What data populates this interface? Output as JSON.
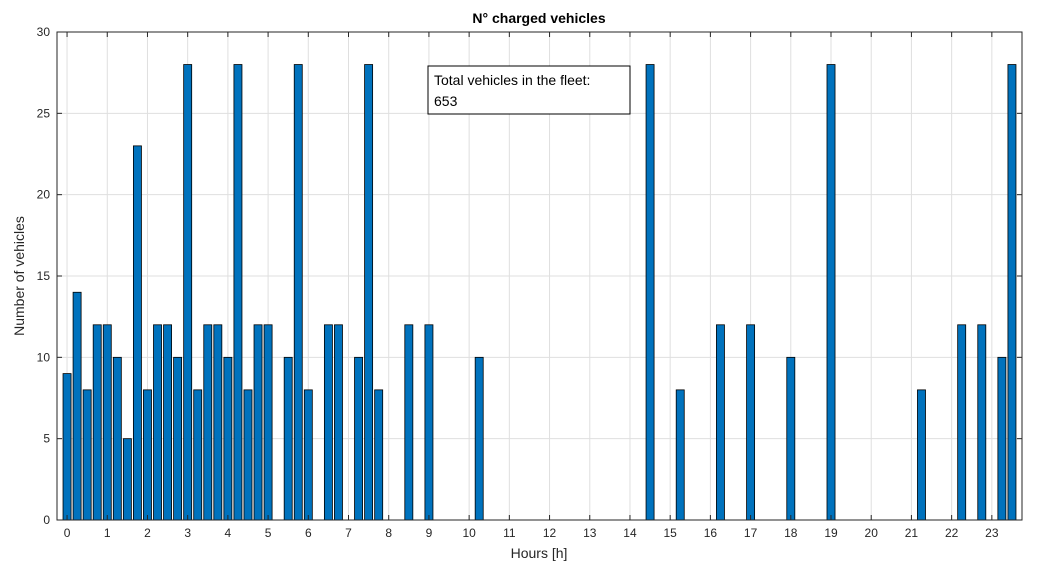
{
  "chart_data": {
    "type": "bar",
    "title": "N° charged vehicles",
    "xlabel": "Hours [h]",
    "ylabel": "Number of vehicles",
    "xlim": [
      -0.25,
      23.75
    ],
    "ylim": [
      0,
      30
    ],
    "xticks": [
      "0",
      "1",
      "2",
      "3",
      "4",
      "5",
      "6",
      "7",
      "8",
      "9",
      "10",
      "11",
      "12",
      "13",
      "14",
      "15",
      "16",
      "17",
      "18",
      "19",
      "20",
      "21",
      "22",
      "23"
    ],
    "yticks": [
      "0",
      "5",
      "10",
      "15",
      "20",
      "25",
      "30"
    ],
    "grid": true,
    "bar_color": "#0072bd",
    "bar_width_hours": 0.2,
    "x": [
      0,
      0.25,
      0.5,
      0.75,
      1,
      1.25,
      1.5,
      1.75,
      2,
      2.25,
      2.5,
      2.75,
      3,
      3.25,
      3.5,
      3.75,
      4,
      4.25,
      4.5,
      4.75,
      5,
      5.5,
      5.75,
      6,
      6.5,
      6.75,
      7.25,
      7.5,
      7.75,
      8.5,
      9,
      10.25,
      14.5,
      15.25,
      16.25,
      17,
      18,
      19,
      21.25,
      22.25,
      22.75,
      23.25,
      23.5
    ],
    "values": [
      9,
      14,
      8,
      12,
      12,
      10,
      5,
      23,
      8,
      12,
      12,
      10,
      28,
      8,
      12,
      12,
      10,
      28,
      8,
      12,
      12,
      10,
      28,
      8,
      12,
      12,
      10,
      28,
      8,
      12,
      12,
      10,
      28,
      8,
      12,
      12,
      10,
      28,
      8,
      12,
      12,
      10,
      28
    ],
    "annotation": {
      "lines": [
        "Total vehicles in the fleet:",
        "653"
      ]
    }
  }
}
